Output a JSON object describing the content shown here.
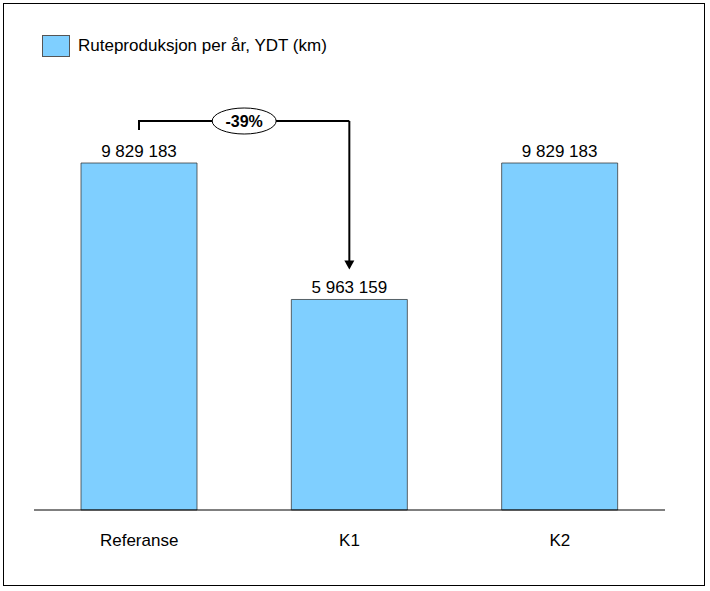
{
  "chart_data": {
    "type": "bar",
    "categories": [
      "Referanse",
      "K1",
      "K2"
    ],
    "series": [
      {
        "name": "Ruteproduksjon per år, YDT (km)",
        "color": "#7fcfff",
        "values": [
          9829183,
          5963159,
          9829183
        ],
        "value_labels": [
          "9 829 183",
          "5 963 159",
          "9 829 183"
        ]
      }
    ],
    "data_labels": true,
    "tick_labels": "x",
    "legend": "top-left",
    "annotations": [
      {
        "text": "-39%",
        "from": "Referanse",
        "to": "K1"
      }
    ]
  }
}
